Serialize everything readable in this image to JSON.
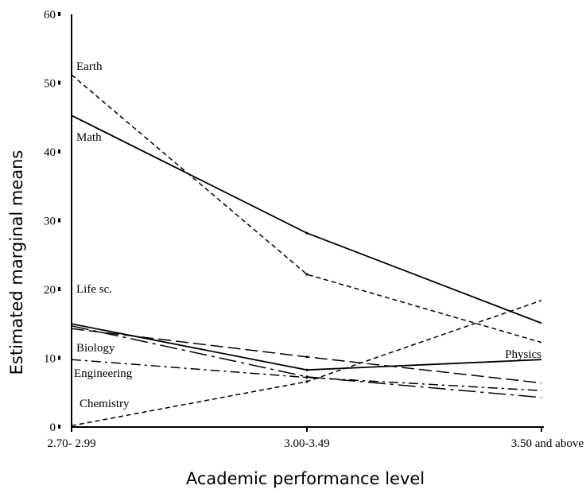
{
  "chart_data": {
    "type": "line",
    "title": "",
    "xlabel": "Academic performance level",
    "ylabel": "Estimated marginal means",
    "categories": [
      "2.70- 2.99",
      "3.00-3.49",
      "3.50 and above"
    ],
    "ylim": [
      0,
      60
    ],
    "yticks": [
      "0",
      "10",
      "20",
      "30",
      "40",
      "50",
      "60"
    ],
    "grid": false,
    "legend": "none; series names written directly beside the lines",
    "series": [
      {
        "name": "Earth",
        "values": [
          51.2,
          22.2,
          12.3
        ],
        "dash": "short-dash"
      },
      {
        "name": "Math",
        "values": [
          45.3,
          28.2,
          15.1
        ],
        "dash": "solid"
      },
      {
        "name": "Life sc.",
        "values": [
          14.7,
          7.3,
          4.3
        ],
        "dash": "long-dash-dot"
      },
      {
        "name": "Biology",
        "values": [
          14.3,
          10.2,
          6.4
        ],
        "dash": "long-dash"
      },
      {
        "name": "Engineering",
        "values": [
          9.8,
          7.2,
          5.3
        ],
        "dash": "dash-dot"
      },
      {
        "name": "Physics",
        "values": [
          15.0,
          8.3,
          9.8
        ],
        "dash": "solid"
      },
      {
        "name": "Chemistry",
        "values": [
          0.2,
          6.6,
          18.4
        ],
        "dash": "short-dash"
      }
    ]
  }
}
